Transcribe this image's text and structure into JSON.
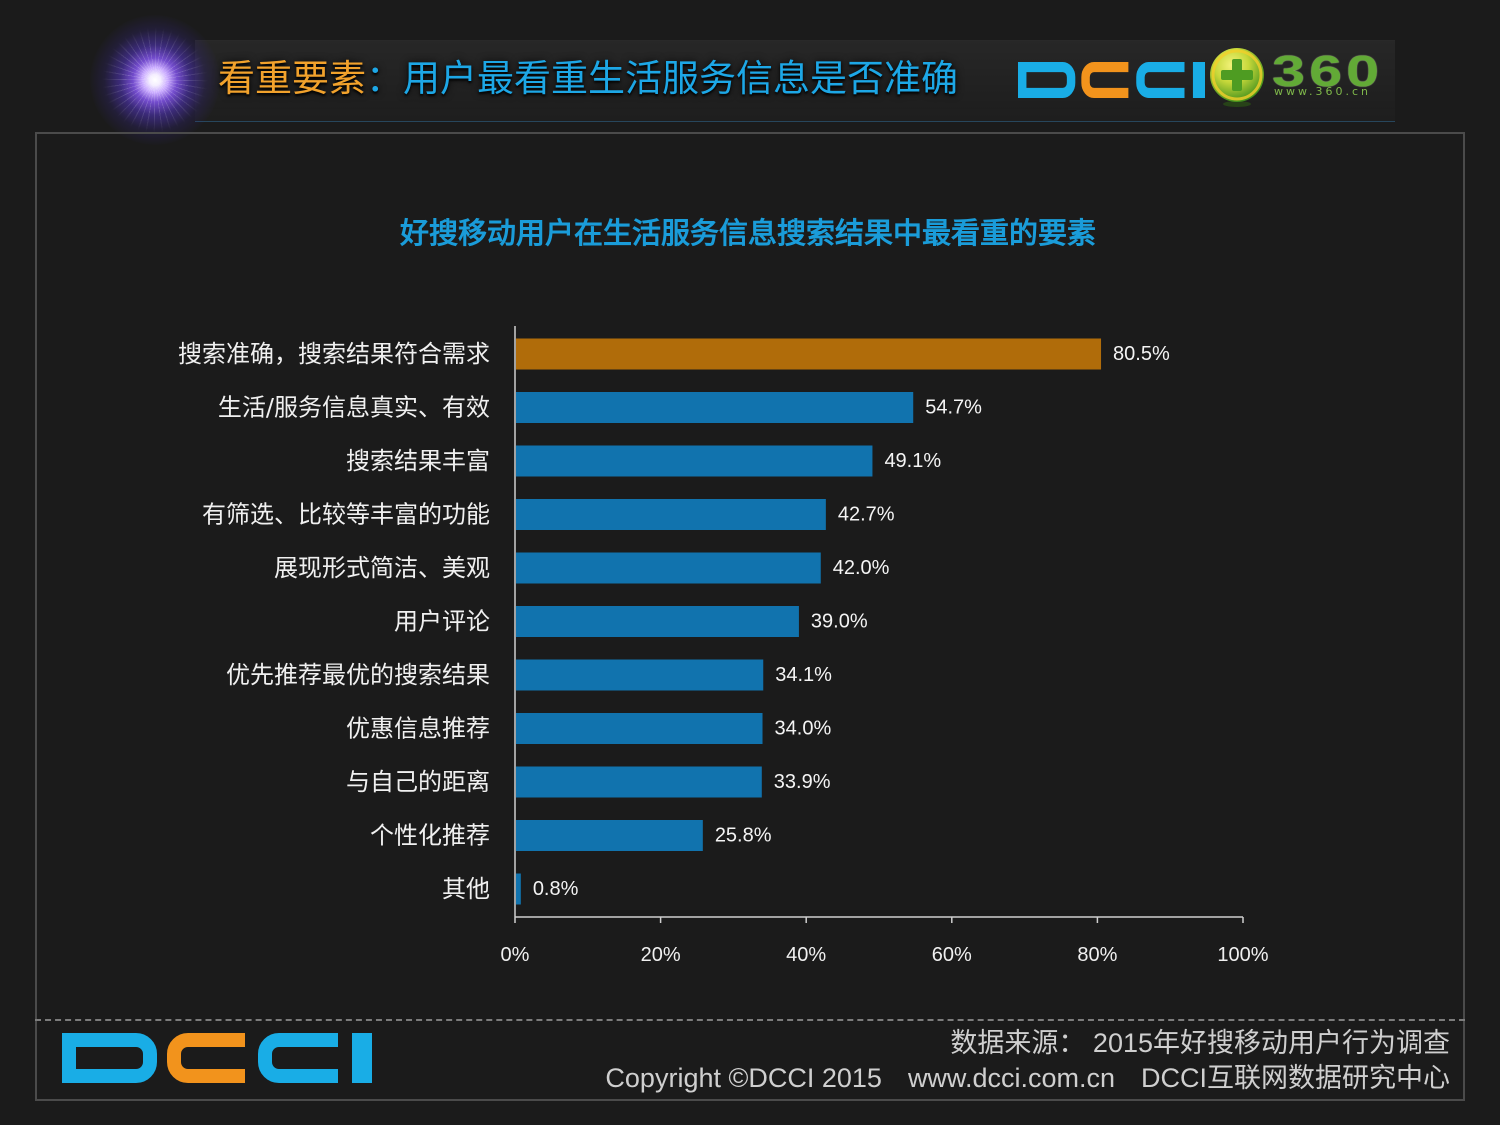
{
  "colors": {
    "page_background": "#1b1b1b",
    "title_orange": "#f2a22c",
    "title_blue": "#1da7e6",
    "subtitle_blue": "#1a9cd9",
    "logo_blue": "#19ade6",
    "logo_orange": "#f2931c",
    "partner_green": "#62aa36"
  },
  "header": {
    "title_highlight": "看重要素",
    "title_rest": "：用户最看重生活服务信息是否准确",
    "logo": "DCCI",
    "partner_logo_text": "360",
    "partner_logo_url": "www.360.cn"
  },
  "chart_data": {
    "type": "bar",
    "orientation": "horizontal",
    "title": "好搜移动用户在生活服务信息搜索结果中最看重的要素",
    "categories": [
      "搜索准确，搜索结果符合需求",
      "生活/服务信息真实、有效",
      "搜索结果丰富",
      "有筛选、比较等丰富的功能",
      "展现形式简洁、美观",
      "用户评论",
      "优先推荐最优的搜索结果",
      "优惠信息推荐",
      "与自己的距离",
      "个性化推荐",
      "其他"
    ],
    "values": [
      80.5,
      54.7,
      49.1,
      42.7,
      42.0,
      39.0,
      34.1,
      34.0,
      33.9,
      25.8,
      0.8
    ],
    "value_labels": [
      "80.5%",
      "54.7%",
      "49.1%",
      "42.7%",
      "42.0%",
      "39.0%",
      "34.1%",
      "34.0%",
      "33.9%",
      "25.8%",
      "0.8%"
    ],
    "bar_colors": [
      "#b06c0a",
      "#1173ae",
      "#1173ae",
      "#1173ae",
      "#1173ae",
      "#1173ae",
      "#1173ae",
      "#1173ae",
      "#1173ae",
      "#1173ae",
      "#1173ae"
    ],
    "xlim": [
      0,
      100
    ],
    "x_ticks": [
      0,
      20,
      40,
      60,
      80,
      100
    ],
    "x_tick_labels": [
      "0%",
      "20%",
      "40%",
      "60%",
      "80%",
      "100%"
    ],
    "grid": false,
    "legend": "none"
  },
  "footer": {
    "logo": "DCCI",
    "source": "数据来源： 2015年好搜移动用户行为调查",
    "copyright": "Copyright ©DCCI 2015",
    "website": "www.dcci.com.cn",
    "organization": "DCCI互联网数据研究中心"
  }
}
